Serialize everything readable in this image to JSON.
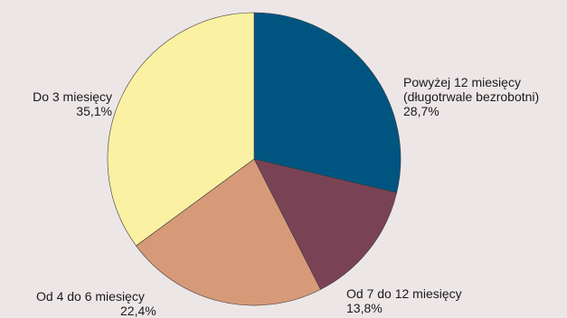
{
  "chart_data": {
    "type": "pie",
    "title": "",
    "start_angle_deg": 0,
    "direction": "clockwise",
    "slices": [
      {
        "label_lines": [
          "Powyżej 12 miesięcy",
          "(długotrwale bezrobotni)"
        ],
        "value_label": "28,7%",
        "value": 28.7,
        "color": "#005580"
      },
      {
        "label_lines": [
          "Od 7 do 12 miesięcy"
        ],
        "value_label": "13,8%",
        "value": 13.8,
        "color": "#7a4355"
      },
      {
        "label_lines": [
          "Od 4 do 6 miesięcy"
        ],
        "value_label": "22,4%",
        "value": 22.4,
        "color": "#d69a78"
      },
      {
        "label_lines": [
          "Do 3 miesięcy"
        ],
        "value_label": "35,1%",
        "value": 35.1,
        "color": "#fbf1a3"
      }
    ]
  }
}
